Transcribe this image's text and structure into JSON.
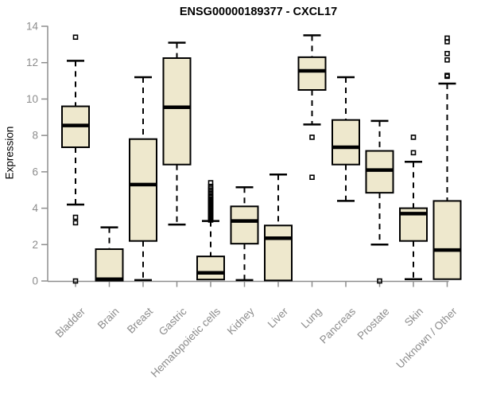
{
  "colors": {
    "box_fill": "#EEE8CD",
    "box_border": "#000000",
    "median": "#000000",
    "whisker": "#000000",
    "axis": "#8E8E8E",
    "tick_label": "#8C8C8C",
    "title": "#000000",
    "background": "#FFFFFF"
  },
  "chart_data": {
    "type": "boxplot",
    "title": "ENSG00000189377 - CXCL17",
    "xlabel": "",
    "ylabel": "Expression",
    "ylim": [
      0,
      14
    ],
    "yticks": [
      0,
      2,
      4,
      6,
      8,
      10,
      12,
      14
    ],
    "grid": "off",
    "legend": "none",
    "categories": [
      "Bladder",
      "Brain",
      "Breast",
      "Gastric",
      "Hematopoietic cells",
      "Kidney",
      "Liver",
      "Lung",
      "Pancreas",
      "Prostate",
      "Skin",
      "Unknown / Other"
    ],
    "series": [
      {
        "category": "Bladder",
        "whisker_low": 4.2,
        "q1": 7.35,
        "median": 8.55,
        "q3": 9.6,
        "whisker_high": 12.1,
        "outliers": [
          13.4,
          3.5,
          3.2,
          0.0
        ]
      },
      {
        "category": "Brain",
        "whisker_low": 0.02,
        "q1": 0.02,
        "median": 0.1,
        "q3": 1.75,
        "whisker_high": 2.95,
        "outliers": []
      },
      {
        "category": "Breast",
        "whisker_low": 0.05,
        "q1": 2.2,
        "median": 5.3,
        "q3": 7.8,
        "whisker_high": 11.2,
        "outliers": []
      },
      {
        "category": "Gastric",
        "whisker_low": 3.1,
        "q1": 6.4,
        "median": 9.55,
        "q3": 12.25,
        "whisker_high": 13.1,
        "outliers": []
      },
      {
        "category": "Hematopoietic cells",
        "whisker_low": 0.0,
        "q1": 0.08,
        "median": 0.45,
        "q3": 1.35,
        "whisker_high": 3.3,
        "outliers": [
          5.4,
          5.2,
          5.1,
          5.0,
          4.9,
          4.8,
          4.7,
          4.65,
          4.6,
          4.5,
          4.45,
          4.4,
          4.35,
          4.3,
          4.25,
          4.2,
          4.15,
          4.1,
          4.05,
          4.0,
          3.95,
          3.9,
          3.85,
          3.8,
          3.75,
          3.7,
          3.65,
          3.6,
          3.55,
          3.5,
          3.45,
          3.4,
          3.35
        ]
      },
      {
        "category": "Kidney",
        "whisker_low": 0.05,
        "q1": 2.05,
        "median": 3.3,
        "q3": 4.1,
        "whisker_high": 5.15,
        "outliers": []
      },
      {
        "category": "Liver",
        "whisker_low": 0.03,
        "q1": 0.03,
        "median": 2.35,
        "q3": 3.05,
        "whisker_high": 5.85,
        "outliers": []
      },
      {
        "category": "Lung",
        "whisker_low": 8.6,
        "q1": 10.5,
        "median": 11.55,
        "q3": 12.3,
        "whisker_high": 13.5,
        "outliers": [
          7.9,
          5.7
        ]
      },
      {
        "category": "Pancreas",
        "whisker_low": 4.4,
        "q1": 6.4,
        "median": 7.35,
        "q3": 8.85,
        "whisker_high": 11.2,
        "outliers": []
      },
      {
        "category": "Prostate",
        "whisker_low": 2.0,
        "q1": 4.85,
        "median": 6.1,
        "q3": 7.15,
        "whisker_high": 8.8,
        "outliers": [
          0.0
        ]
      },
      {
        "category": "Skin",
        "whisker_low": 0.1,
        "q1": 2.2,
        "median": 3.7,
        "q3": 4.0,
        "whisker_high": 6.55,
        "outliers": [
          7.9,
          7.05
        ]
      },
      {
        "category": "Unknown / Other",
        "whisker_low": 0.02,
        "q1": 0.1,
        "median": 1.7,
        "q3": 4.4,
        "whisker_high": 10.85,
        "outliers": [
          13.35,
          13.15,
          12.5,
          12.15,
          11.3,
          11.25
        ]
      }
    ]
  }
}
